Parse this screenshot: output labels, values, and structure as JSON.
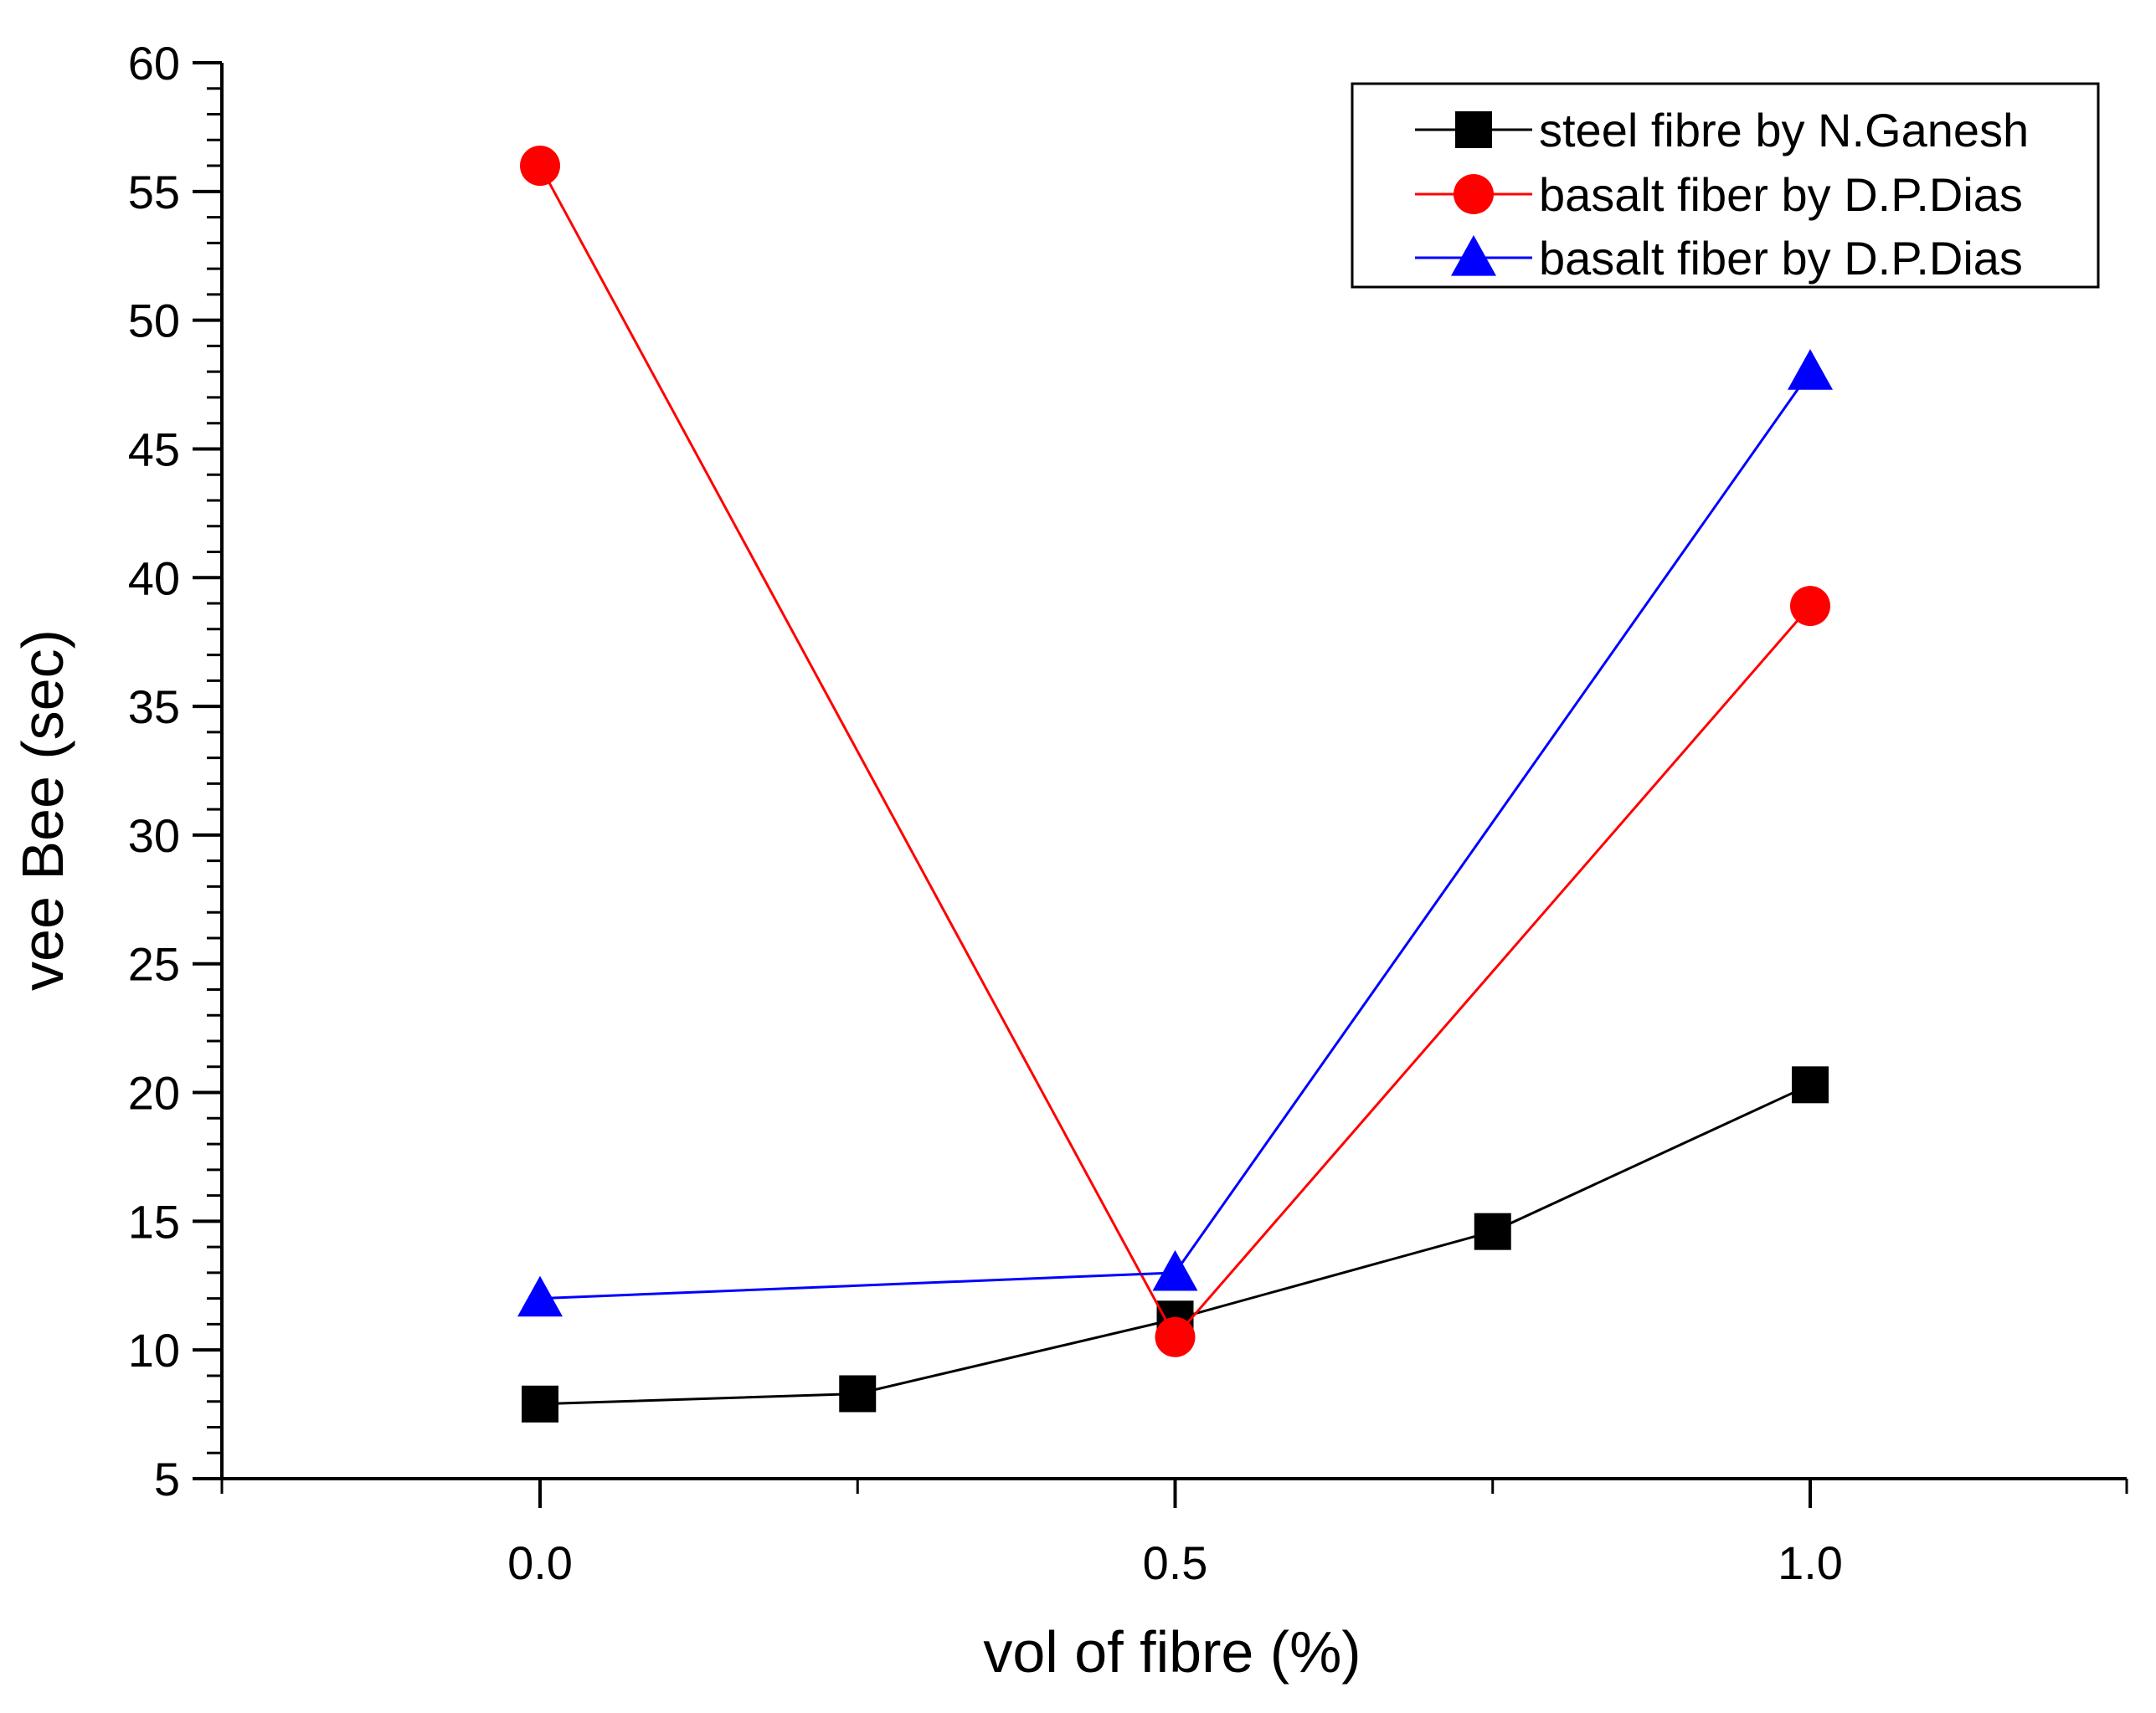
{
  "chart_data": {
    "type": "line",
    "title": "",
    "xlabel": "vol of fibre (%)",
    "ylabel": "vee Bee (sec)",
    "xlim": [
      -0.25,
      1.25
    ],
    "ylim": [
      5,
      60
    ],
    "x_ticks": [
      0.0,
      0.5,
      1.0
    ],
    "x_tick_labels": [
      "0.0",
      "0.5",
      "1.0"
    ],
    "x_minor_ticks": [
      0.25,
      0.75
    ],
    "y_ticks": [
      5,
      10,
      15,
      20,
      25,
      30,
      35,
      40,
      45,
      50,
      55,
      60
    ],
    "y_tick_labels": [
      "5",
      "10",
      "15",
      "20",
      "25",
      "30",
      "35",
      "40",
      "45",
      "50",
      "55",
      "60"
    ],
    "grid": false,
    "legend_position": "top-right",
    "series": [
      {
        "name": "steel fibre by N.Ganesh",
        "color": "#000000",
        "marker": "square",
        "x": [
          0.0,
          0.25,
          0.5,
          0.75,
          1.0
        ],
        "y": [
          7.9,
          8.3,
          11.2,
          14.6,
          20.3
        ]
      },
      {
        "name": "basalt fiber by D.P.Dias",
        "color": "#ff0000",
        "marker": "circle",
        "x": [
          0.0,
          0.5,
          1.0
        ],
        "y": [
          56.0,
          10.5,
          38.9
        ]
      },
      {
        "name": "basalt fiber by D.P.Dias",
        "color": "#0000ff",
        "marker": "triangle",
        "x": [
          0.0,
          0.5,
          1.0
        ],
        "y": [
          12.0,
          13.0,
          48.0
        ]
      }
    ]
  }
}
